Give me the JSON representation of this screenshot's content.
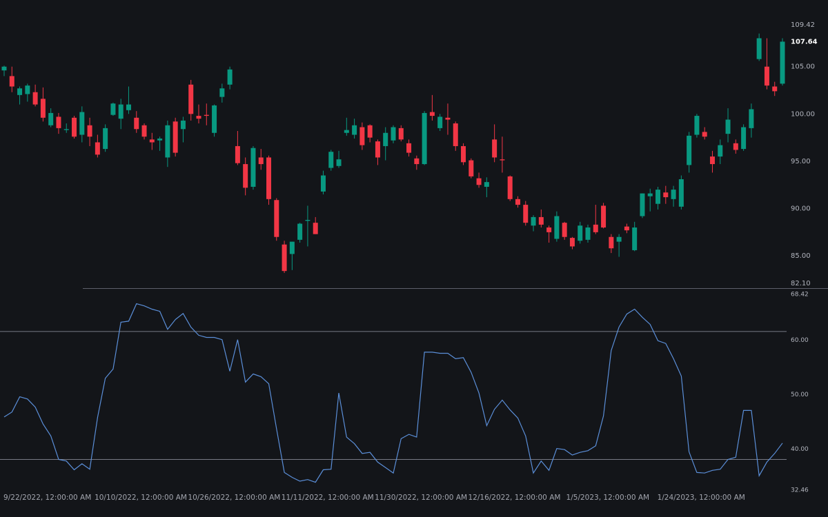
{
  "chart_data": {
    "type": "candlestick",
    "categories": [
      null,
      null,
      null,
      null,
      null,
      null,
      "9/22/2022, 12:00:00 AM",
      null,
      null,
      null,
      null,
      null,
      null,
      null,
      null,
      null,
      null,
      null,
      "10/10/2022, 12:00:00 AM",
      null,
      null,
      null,
      null,
      null,
      null,
      null,
      null,
      null,
      null,
      null,
      "10/26/2022, 12:00:00 AM",
      null,
      null,
      null,
      null,
      null,
      null,
      null,
      null,
      null,
      null,
      null,
      "11/11/2022, 12:00:00 AM",
      null,
      null,
      null,
      null,
      null,
      null,
      null,
      null,
      null,
      null,
      null,
      "11/30/2022, 12:00:00 AM",
      null,
      null,
      null,
      null,
      null,
      null,
      null,
      null,
      null,
      null,
      null,
      "12/16/2022, 12:00:00 AM",
      null,
      null,
      null,
      null,
      null,
      null,
      null,
      null,
      null,
      null,
      null,
      "1/5/2023, 12:00:00 AM",
      null,
      null,
      null,
      null,
      null,
      null,
      null,
      null,
      null,
      null,
      null,
      "1/24/2023, 12:00:00 AM",
      null,
      null,
      null,
      null,
      null,
      null,
      null,
      null,
      null,
      null
    ],
    "open": [
      104.6,
      104.0,
      102.0,
      102.1,
      102.3,
      101.6,
      98.8,
      99.7,
      98.3,
      99.6,
      97.8,
      98.8,
      97.0,
      96.3,
      99.9,
      99.5,
      100.4,
      99.6,
      98.8,
      97.3,
      97.2,
      95.4,
      99.2,
      98.4,
      103.1,
      99.8,
      99.9,
      98.0,
      101.8,
      103.1,
      96.6,
      94.7,
      92.3,
      95.4,
      95.4,
      90.9,
      86.2,
      85.2,
      86.7,
      88.7,
      88.5,
      91.8,
      94.3,
      94.5,
      98.0,
      97.8,
      98.6,
      98.8,
      97.1,
      96.6,
      97.2,
      98.5,
      96.9,
      95.3,
      94.7,
      100.2,
      98.5,
      99.6,
      99.0,
      96.6,
      95.1,
      93.2,
      92.3,
      97.3,
      95.2,
      93.4,
      91.0,
      90.4,
      88.2,
      89.1,
      88.0,
      86.8,
      88.5,
      86.9,
      86.6,
      86.7,
      88.3,
      90.3,
      87.0,
      86.5,
      88.1,
      85.6,
      89.2,
      91.3,
      90.5,
      91.7,
      91.0,
      90.2,
      94.6,
      97.8,
      98.1,
      95.5,
      95.5,
      97.9,
      96.9,
      96.3,
      98.5,
      105.8,
      105.0,
      102.9,
      103.2
    ],
    "high": [
      105.1,
      105.0,
      102.9,
      103.2,
      103.1,
      102.8,
      100.6,
      100.1,
      99.0,
      99.8,
      100.8,
      99.6,
      97.8,
      98.9,
      101.2,
      101.6,
      102.9,
      100.3,
      99.0,
      98.0,
      97.6,
      99.3,
      99.6,
      99.7,
      103.6,
      101.0,
      101.1,
      101.0,
      103.2,
      105.0,
      98.2,
      95.4,
      96.6,
      96.3,
      95.6,
      91.1,
      86.6,
      86.5,
      88.5,
      90.3,
      89.1,
      94.0,
      96.2,
      96.1,
      99.6,
      99.5,
      99.1,
      98.9,
      97.3,
      98.6,
      98.8,
      98.8,
      97.3,
      95.6,
      100.3,
      102.0,
      100.0,
      101.1,
      99.2,
      96.9,
      95.3,
      93.8,
      93.3,
      98.9,
      97.6,
      93.5,
      91.3,
      90.8,
      89.3,
      89.9,
      88.2,
      89.7,
      88.6,
      87.0,
      88.6,
      88.3,
      90.4,
      90.6,
      87.3,
      87.3,
      88.4,
      88.6,
      91.6,
      92.1,
      92.3,
      92.4,
      92.4,
      93.5,
      98.1,
      100.0,
      98.6,
      96.1,
      97.3,
      100.6,
      97.3,
      98.9,
      101.1,
      108.5,
      108.0,
      103.4,
      108.0
    ],
    "low": [
      104.0,
      102.3,
      101.0,
      101.3,
      100.8,
      99.2,
      98.6,
      97.9,
      98.0,
      97.4,
      97.0,
      96.6,
      95.4,
      96.0,
      99.8,
      98.4,
      100.0,
      98.0,
      97.3,
      96.2,
      96.1,
      94.4,
      95.5,
      97.0,
      99.3,
      99.0,
      98.8,
      97.6,
      101.2,
      102.6,
      94.6,
      91.4,
      92.0,
      94.1,
      90.4,
      86.6,
      83.2,
      83.5,
      86.4,
      86.0,
      87.3,
      91.5,
      94.0,
      94.3,
      97.7,
      97.4,
      96.2,
      97.0,
      94.6,
      95.1,
      96.9,
      97.1,
      95.5,
      94.1,
      94.6,
      99.3,
      98.2,
      97.8,
      96.1,
      94.6,
      93.2,
      92.2,
      91.2,
      94.9,
      93.8,
      90.8,
      90.1,
      88.2,
      87.6,
      88.0,
      86.4,
      86.5,
      86.7,
      85.7,
      86.3,
      86.4,
      87.3,
      87.9,
      85.3,
      84.9,
      87.4,
      85.5,
      89.0,
      89.7,
      89.9,
      90.5,
      90.2,
      89.9,
      93.8,
      97.5,
      97.3,
      93.8,
      94.7,
      97.0,
      95.8,
      96.1,
      97.5,
      105.6,
      102.6,
      101.9,
      103.0
    ],
    "close": [
      105.0,
      102.9,
      102.7,
      103.0,
      101.0,
      99.6,
      100.1,
      98.5,
      98.4,
      97.6,
      100.2,
      97.6,
      95.7,
      98.5,
      101.1,
      101.0,
      101.0,
      98.4,
      97.6,
      97.0,
      97.4,
      98.8,
      95.9,
      99.3,
      100.0,
      99.5,
      99.8,
      100.9,
      102.7,
      104.7,
      94.8,
      92.2,
      96.4,
      94.7,
      91.0,
      87.0,
      83.4,
      86.5,
      88.4,
      88.8,
      87.3,
      93.5,
      96.0,
      95.2,
      98.3,
      98.8,
      96.7,
      97.5,
      95.4,
      98.0,
      98.6,
      97.3,
      95.9,
      94.7,
      100.1,
      99.8,
      99.7,
      99.4,
      96.6,
      94.9,
      93.4,
      92.5,
      92.8,
      95.4,
      95.1,
      91.0,
      90.4,
      88.5,
      89.1,
      88.3,
      87.5,
      89.2,
      87.0,
      86.0,
      88.2,
      88.0,
      87.5,
      88.0,
      85.8,
      87.0,
      87.7,
      88.0,
      91.6,
      91.6,
      92.0,
      91.2,
      92.0,
      93.1,
      97.7,
      99.8,
      97.6,
      94.7,
      96.7,
      99.4,
      96.2,
      98.6,
      100.5,
      108.0,
      103.0,
      102.4,
      107.64
    ],
    "up_color": "#089981",
    "down_color": "#f23645",
    "ylim": [
      82.1,
      109.42
    ],
    "yticks": [
      109.42,
      {
        "value": 105,
        "label": "105.00"
      },
      {
        "value": 100,
        "label": "100.00"
      },
      {
        "value": 95,
        "label": "95.00"
      },
      {
        "value": 90,
        "label": "90.00"
      },
      {
        "value": 85,
        "label": "85.00"
      },
      {
        "value": 82.1,
        "label": "82.10"
      }
    ],
    "indicator": {
      "type": "line",
      "color": "#5b8fd9",
      "values": [
        45.9,
        46.8,
        49.6,
        49.2,
        47.7,
        44.6,
        42.4,
        38.1,
        37.8,
        36.2,
        37.3,
        36.3,
        45.8,
        53.0,
        54.7,
        63.3,
        63.5,
        66.7,
        66.3,
        65.7,
        65.3,
        62.0,
        63.8,
        64.9,
        62.4,
        60.9,
        60.5,
        60.5,
        60.1,
        54.3,
        60.1,
        52.3,
        53.8,
        53.3,
        52.0,
        43.7,
        35.7,
        34.8,
        34.1,
        34.4,
        33.9,
        36.2,
        36.3,
        50.3,
        42.2,
        41.0,
        39.2,
        39.4,
        37.6,
        36.6,
        35.6,
        41.9,
        42.7,
        42.2,
        57.8,
        57.8,
        57.6,
        57.6,
        56.6,
        56.8,
        54.1,
        50.3,
        44.3,
        47.3,
        49.0,
        47.2,
        45.7,
        42.4,
        35.6,
        37.8,
        36.1,
        40.1,
        39.9,
        38.9,
        39.4,
        39.7,
        40.6,
        46.1,
        58.1,
        62.4,
        64.8,
        65.7,
        64.2,
        62.9,
        59.9,
        59.4,
        56.6,
        53.4,
        39.5,
        35.7,
        35.6,
        36.1,
        36.3,
        38.1,
        38.5,
        47.1,
        47.1,
        35.1,
        37.6,
        39.2,
        41.1
      ],
      "ylim": [
        32.46,
        68.42
      ],
      "yticks": [
        68.42,
        {
          "value": 60,
          "label": "60.00"
        },
        {
          "value": 50,
          "label": "50.00"
        },
        {
          "value": 40,
          "label": "40.00"
        },
        32.46
      ],
      "levels": [
        61.6,
        38.1
      ]
    }
  }
}
